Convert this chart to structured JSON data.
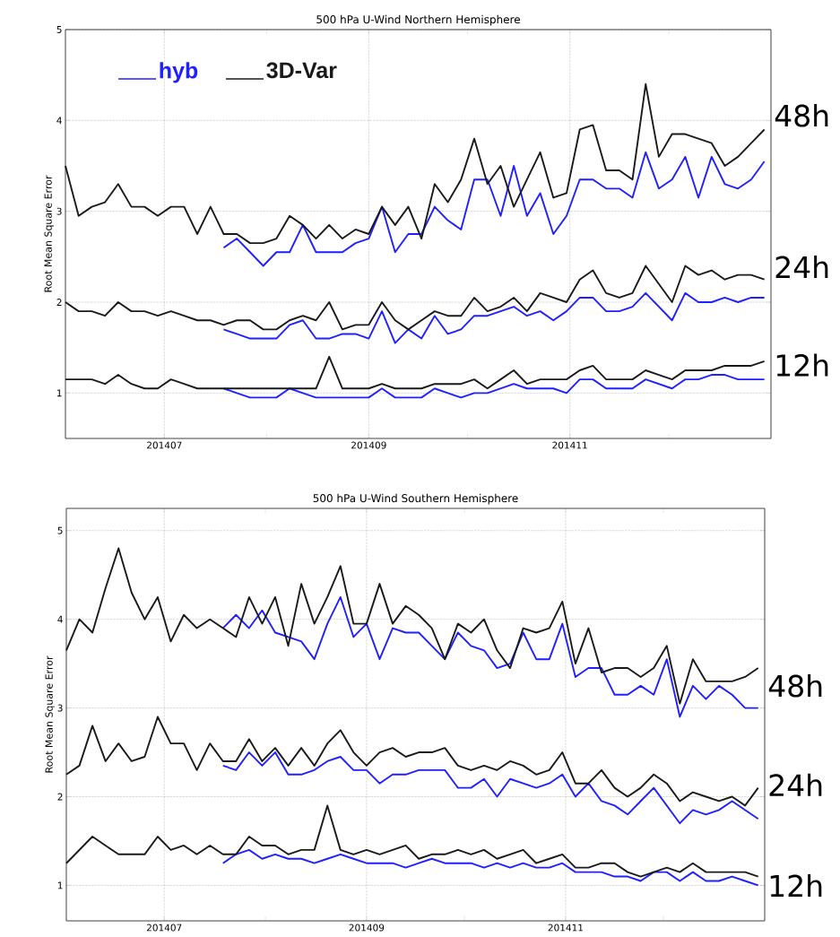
{
  "chart_data": [
    {
      "type": "line",
      "title": "500 hPa U-Wind Northern Hemisphere",
      "ylabel": "Root Mean Square Error",
      "grid": true,
      "legend": "top left",
      "xlim": [
        "2014-06-01",
        "2015-01-01"
      ],
      "ylim": [
        0.5,
        5
      ],
      "xticks": [
        {
          "value": "2014-07-01",
          "label": "201407"
        },
        {
          "value": "2014-08-01",
          "label": null
        },
        {
          "value": "2014-09-01",
          "label": "201409"
        },
        {
          "value": "2014-10-01",
          "label": null
        },
        {
          "value": "2014-11-01",
          "label": "201411"
        },
        {
          "value": "2014-12-01",
          "label": null
        }
      ],
      "yticks": [
        1,
        2,
        3,
        4,
        5
      ],
      "x": [
        "2014-06-01",
        "2014-06-05",
        "2014-06-09",
        "2014-06-13",
        "2014-06-17",
        "2014-06-21",
        "2014-06-25",
        "2014-06-29",
        "2014-07-03",
        "2014-07-07",
        "2014-07-11",
        "2014-07-15",
        "2014-07-19",
        "2014-07-23",
        "2014-07-27",
        "2014-07-31",
        "2014-08-04",
        "2014-08-08",
        "2014-08-12",
        "2014-08-16",
        "2014-08-20",
        "2014-08-24",
        "2014-08-28",
        "2014-09-01",
        "2014-09-05",
        "2014-09-09",
        "2014-09-13",
        "2014-09-17",
        "2014-09-21",
        "2014-09-25",
        "2014-09-29",
        "2014-10-03",
        "2014-10-07",
        "2014-10-11",
        "2014-10-15",
        "2014-10-19",
        "2014-10-23",
        "2014-10-27",
        "2014-10-31",
        "2014-11-04",
        "2014-11-08",
        "2014-11-12",
        "2014-11-16",
        "2014-11-20",
        "2014-11-24",
        "2014-11-28",
        "2014-12-02",
        "2014-12-06",
        "2014-12-10",
        "2014-12-14",
        "2014-12-18",
        "2014-12-22",
        "2014-12-26",
        "2014-12-30"
      ],
      "series": [
        {
          "name": "hyb",
          "color": "#2020ff",
          "values": [
            null,
            null,
            null,
            null,
            null,
            null,
            null,
            null,
            null,
            null,
            null,
            null,
            2.6,
            2.7,
            2.55,
            2.4,
            2.55,
            2.55,
            2.85,
            2.55,
            2.55,
            2.55,
            2.65,
            2.7,
            3.05,
            2.55,
            2.75,
            2.75,
            3.05,
            2.9,
            2.8,
            3.35,
            3.35,
            2.95,
            3.5,
            2.95,
            3.2,
            2.75,
            2.95,
            3.35,
            3.35,
            3.25,
            3.25,
            3.15,
            3.65,
            3.25,
            3.35,
            3.6,
            3.15,
            3.6,
            3.3,
            3.25,
            3.35,
            3.55
          ]
        },
        {
          "name": "3D-Var",
          "color": "#1a1a1a",
          "values": [
            3.5,
            2.95,
            3.05,
            3.1,
            3.3,
            3.05,
            3.05,
            2.95,
            3.05,
            3.05,
            2.75,
            3.05,
            2.75,
            2.75,
            2.65,
            2.65,
            2.7,
            2.95,
            2.85,
            2.7,
            2.85,
            2.7,
            2.8,
            2.75,
            3.05,
            2.85,
            3.05,
            2.7,
            3.3,
            3.1,
            3.35,
            3.8,
            3.3,
            3.5,
            3.05,
            3.35,
            3.65,
            3.15,
            3.2,
            3.9,
            3.95,
            3.45,
            3.45,
            3.35,
            4.4,
            3.6,
            3.85,
            3.85,
            3.8,
            3.75,
            3.5,
            3.6,
            3.75,
            3.9
          ]
        },
        {
          "color": "#2020ff",
          "values": [
            null,
            null,
            null,
            null,
            null,
            null,
            null,
            null,
            null,
            null,
            null,
            null,
            1.7,
            1.65,
            1.6,
            1.6,
            1.6,
            1.75,
            1.8,
            1.6,
            1.6,
            1.65,
            1.65,
            1.6,
            1.9,
            1.55,
            1.7,
            1.6,
            1.85,
            1.65,
            1.7,
            1.85,
            1.85,
            1.9,
            1.95,
            1.85,
            1.9,
            1.8,
            1.9,
            2.05,
            2.05,
            1.9,
            1.9,
            1.95,
            2.1,
            1.95,
            1.8,
            2.1,
            2.0,
            2.0,
            2.05,
            2.0,
            2.05,
            2.05
          ]
        },
        {
          "color": "#1a1a1a",
          "values": [
            2.0,
            1.9,
            1.9,
            1.85,
            2.0,
            1.9,
            1.9,
            1.85,
            1.9,
            1.85,
            1.8,
            1.8,
            1.75,
            1.8,
            1.8,
            1.7,
            1.7,
            1.8,
            1.85,
            1.8,
            2.0,
            1.7,
            1.75,
            1.75,
            2.0,
            1.8,
            1.7,
            1.8,
            1.9,
            1.85,
            1.85,
            2.05,
            1.9,
            1.95,
            2.05,
            1.9,
            2.1,
            2.05,
            2.0,
            2.25,
            2.35,
            2.1,
            2.05,
            2.1,
            2.4,
            2.2,
            2.0,
            2.4,
            2.3,
            2.35,
            2.25,
            2.3,
            2.3,
            2.25
          ]
        },
        {
          "color": "#2020ff",
          "values": [
            null,
            null,
            null,
            null,
            null,
            null,
            null,
            null,
            null,
            null,
            null,
            null,
            1.05,
            1.0,
            0.95,
            0.95,
            0.95,
            1.05,
            1.0,
            0.95,
            0.95,
            0.95,
            0.95,
            0.95,
            1.05,
            0.95,
            0.95,
            0.95,
            1.05,
            1.0,
            0.95,
            1.0,
            1.0,
            1.05,
            1.1,
            1.05,
            1.05,
            1.05,
            1.0,
            1.15,
            1.15,
            1.05,
            1.05,
            1.05,
            1.15,
            1.1,
            1.05,
            1.15,
            1.15,
            1.2,
            1.2,
            1.15,
            1.15,
            1.15
          ]
        },
        {
          "color": "#1a1a1a",
          "values": [
            1.15,
            1.15,
            1.15,
            1.1,
            1.2,
            1.1,
            1.05,
            1.05,
            1.15,
            1.1,
            1.05,
            1.05,
            1.05,
            1.05,
            1.05,
            1.05,
            1.05,
            1.05,
            1.05,
            1.05,
            1.4,
            1.05,
            1.05,
            1.05,
            1.1,
            1.05,
            1.05,
            1.05,
            1.1,
            1.1,
            1.1,
            1.15,
            1.05,
            1.15,
            1.25,
            1.1,
            1.15,
            1.15,
            1.15,
            1.25,
            1.3,
            1.15,
            1.15,
            1.15,
            1.25,
            1.2,
            1.15,
            1.25,
            1.25,
            1.25,
            1.3,
            1.3,
            1.3,
            1.35
          ]
        }
      ],
      "annotations": [
        "48h",
        "24h",
        "12h"
      ]
    },
    {
      "type": "line",
      "title": "500 hPa U-Wind Southern Hemisphere",
      "ylabel": "Root Mean Square Error",
      "grid": true,
      "xlim": [
        "2014-06-01",
        "2015-01-01"
      ],
      "ylim": [
        0.6,
        5.25
      ],
      "xticks": [
        {
          "value": "2014-07-01",
          "label": "201407"
        },
        {
          "value": "2014-08-01",
          "label": null
        },
        {
          "value": "2014-09-01",
          "label": "201409"
        },
        {
          "value": "2014-10-01",
          "label": null
        },
        {
          "value": "2014-11-01",
          "label": "201411"
        },
        {
          "value": "2014-12-01",
          "label": null
        }
      ],
      "yticks": [
        1,
        2,
        3,
        4,
        5
      ],
      "x": [
        "2014-06-01",
        "2014-06-05",
        "2014-06-09",
        "2014-06-13",
        "2014-06-17",
        "2014-06-21",
        "2014-06-25",
        "2014-06-29",
        "2014-07-03",
        "2014-07-07",
        "2014-07-11",
        "2014-07-15",
        "2014-07-19",
        "2014-07-23",
        "2014-07-27",
        "2014-07-31",
        "2014-08-04",
        "2014-08-08",
        "2014-08-12",
        "2014-08-16",
        "2014-08-20",
        "2014-08-24",
        "2014-08-28",
        "2014-09-01",
        "2014-09-05",
        "2014-09-09",
        "2014-09-13",
        "2014-09-17",
        "2014-09-21",
        "2014-09-25",
        "2014-09-29",
        "2014-10-03",
        "2014-10-07",
        "2014-10-11",
        "2014-10-15",
        "2014-10-19",
        "2014-10-23",
        "2014-10-27",
        "2014-10-31",
        "2014-11-04",
        "2014-11-08",
        "2014-11-12",
        "2014-11-16",
        "2014-11-20",
        "2014-11-24",
        "2014-11-28",
        "2014-12-02",
        "2014-12-06",
        "2014-12-10",
        "2014-12-14",
        "2014-12-18",
        "2014-12-22",
        "2014-12-26",
        "2014-12-30"
      ],
      "series": [
        {
          "color": "#2020ff",
          "values": [
            null,
            null,
            null,
            null,
            null,
            null,
            null,
            null,
            null,
            null,
            null,
            null,
            3.9,
            4.05,
            3.9,
            4.1,
            3.85,
            3.8,
            3.75,
            3.55,
            3.95,
            4.25,
            3.8,
            3.95,
            3.55,
            3.9,
            3.85,
            3.85,
            3.7,
            3.55,
            3.85,
            3.7,
            3.65,
            3.45,
            3.5,
            3.85,
            3.55,
            3.55,
            3.95,
            3.35,
            3.45,
            3.45,
            3.15,
            3.15,
            3.25,
            3.15,
            3.55,
            2.9,
            3.25,
            3.1,
            3.25,
            3.15,
            3.0,
            3.0
          ]
        },
        {
          "color": "#1a1a1a",
          "values": [
            3.65,
            4.0,
            3.85,
            4.35,
            4.8,
            4.3,
            4.0,
            4.25,
            3.75,
            4.05,
            3.9,
            4.0,
            3.9,
            3.8,
            4.25,
            3.95,
            4.25,
            3.7,
            4.4,
            3.95,
            4.25,
            4.6,
            3.95,
            3.95,
            4.4,
            3.95,
            4.15,
            4.05,
            3.9,
            3.55,
            3.95,
            3.85,
            4.0,
            3.65,
            3.45,
            3.9,
            3.85,
            3.9,
            4.2,
            3.5,
            3.9,
            3.4,
            3.45,
            3.45,
            3.35,
            3.45,
            3.7,
            3.05,
            3.55,
            3.3,
            3.3,
            3.3,
            3.35,
            3.45
          ]
        },
        {
          "color": "#2020ff",
          "values": [
            null,
            null,
            null,
            null,
            null,
            null,
            null,
            null,
            null,
            null,
            null,
            null,
            2.35,
            2.3,
            2.5,
            2.35,
            2.5,
            2.25,
            2.25,
            2.3,
            2.4,
            2.45,
            2.3,
            2.3,
            2.15,
            2.25,
            2.25,
            2.3,
            2.3,
            2.3,
            2.1,
            2.1,
            2.2,
            2.0,
            2.2,
            2.15,
            2.1,
            2.15,
            2.25,
            2.0,
            2.15,
            1.95,
            1.9,
            1.8,
            1.95,
            2.1,
            1.9,
            1.7,
            1.85,
            1.8,
            1.85,
            1.95,
            1.85,
            1.75
          ]
        },
        {
          "color": "#1a1a1a",
          "values": [
            2.25,
            2.35,
            2.8,
            2.4,
            2.6,
            2.4,
            2.45,
            2.9,
            2.6,
            2.6,
            2.3,
            2.6,
            2.4,
            2.4,
            2.65,
            2.4,
            2.55,
            2.35,
            2.55,
            2.35,
            2.6,
            2.75,
            2.5,
            2.35,
            2.5,
            2.55,
            2.45,
            2.5,
            2.5,
            2.55,
            2.35,
            2.3,
            2.35,
            2.3,
            2.4,
            2.35,
            2.25,
            2.3,
            2.5,
            2.15,
            2.15,
            2.3,
            2.1,
            2.0,
            2.1,
            2.25,
            2.15,
            1.95,
            2.05,
            2.0,
            1.95,
            2.0,
            1.9,
            2.1
          ]
        },
        {
          "color": "#2020ff",
          "values": [
            null,
            null,
            null,
            null,
            null,
            null,
            null,
            null,
            null,
            null,
            null,
            null,
            1.25,
            1.35,
            1.4,
            1.3,
            1.35,
            1.3,
            1.3,
            1.25,
            1.3,
            1.35,
            1.3,
            1.25,
            1.25,
            1.25,
            1.2,
            1.25,
            1.3,
            1.25,
            1.25,
            1.25,
            1.2,
            1.25,
            1.2,
            1.25,
            1.2,
            1.2,
            1.25,
            1.15,
            1.15,
            1.15,
            1.1,
            1.1,
            1.05,
            1.15,
            1.15,
            1.05,
            1.15,
            1.05,
            1.05,
            1.1,
            1.05,
            1.0
          ]
        },
        {
          "color": "#1a1a1a",
          "values": [
            1.25,
            1.4,
            1.55,
            1.45,
            1.35,
            1.35,
            1.35,
            1.55,
            1.4,
            1.45,
            1.35,
            1.45,
            1.35,
            1.35,
            1.55,
            1.45,
            1.45,
            1.35,
            1.4,
            1.4,
            1.9,
            1.4,
            1.35,
            1.4,
            1.35,
            1.4,
            1.45,
            1.3,
            1.35,
            1.35,
            1.4,
            1.35,
            1.4,
            1.3,
            1.35,
            1.4,
            1.25,
            1.3,
            1.35,
            1.2,
            1.2,
            1.25,
            1.25,
            1.15,
            1.1,
            1.15,
            1.2,
            1.15,
            1.25,
            1.15,
            1.15,
            1.15,
            1.15,
            1.1
          ]
        }
      ],
      "annotations": [
        "48h",
        "24h",
        "12h"
      ]
    }
  ]
}
